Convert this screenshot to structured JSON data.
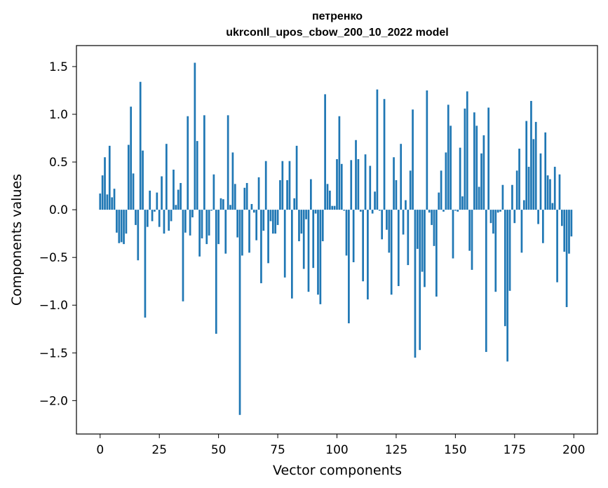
{
  "chart_data": {
    "type": "bar",
    "title_lines": [
      "петренко",
      "ukrconll_upos_cbow_200_10_2022 model"
    ],
    "xlabel": "Vector components",
    "ylabel": "Components values",
    "xlim": [
      -10,
      210
    ],
    "ylim": [
      -2.35,
      1.72
    ],
    "x_ticks": [
      0,
      25,
      50,
      75,
      100,
      125,
      150,
      175,
      200
    ],
    "y_ticks": [
      -2.0,
      -1.5,
      -1.0,
      -0.5,
      0.0,
      0.5,
      1.0,
      1.5
    ],
    "y_tick_labels": [
      "−2.0",
      "−1.5",
      "−1.0",
      "−0.5",
      "0.0",
      "0.5",
      "1.0",
      "1.5"
    ],
    "bar_color": "#1f77b4",
    "grid": false,
    "legend": "none",
    "values": [
      0.17,
      0.36,
      0.55,
      0.16,
      0.67,
      0.13,
      0.22,
      -0.24,
      -0.35,
      -0.34,
      -0.36,
      -0.25,
      0.68,
      1.08,
      0.38,
      -0.16,
      -0.53,
      1.34,
      0.62,
      -1.13,
      -0.18,
      0.2,
      -0.12,
      -0.02,
      0.18,
      -0.18,
      0.35,
      -0.25,
      0.69,
      -0.22,
      -0.12,
      0.42,
      0.05,
      0.21,
      0.28,
      -0.96,
      -0.24,
      0.98,
      -0.27,
      -0.08,
      1.54,
      0.72,
      -0.49,
      -0.3,
      0.99,
      -0.36,
      -0.27,
      -0.01,
      0.37,
      -1.3,
      -0.36,
      0.12,
      0.11,
      -0.46,
      0.99,
      0.05,
      0.6,
      0.27,
      -0.29,
      -2.15,
      -0.48,
      0.23,
      0.28,
      -0.45,
      0.06,
      -0.03,
      -0.32,
      0.34,
      -0.77,
      -0.22,
      0.51,
      -0.56,
      -0.12,
      -0.25,
      -0.25,
      -0.16,
      0.31,
      0.51,
      -0.71,
      0.31,
      0.51,
      -0.93,
      0.12,
      0.67,
      -0.33,
      -0.25,
      -0.62,
      -0.1,
      -0.86,
      0.32,
      -0.61,
      -0.04,
      -0.89,
      -0.99,
      -0.33,
      1.21,
      0.27,
      0.2,
      0.04,
      0.04,
      0.53,
      0.98,
      0.48,
      -0.01,
      -0.48,
      -1.19,
      0.52,
      -0.55,
      0.73,
      0.53,
      -0.02,
      -0.75,
      0.58,
      -0.94,
      0.46,
      -0.04,
      0.19,
      1.26,
      -0.01,
      -0.31,
      1.16,
      -0.21,
      -0.45,
      -0.89,
      0.55,
      0.31,
      -0.8,
      0.69,
      -0.26,
      0.1,
      -0.58,
      0.41,
      1.05,
      -1.55,
      -0.41,
      -1.47,
      -0.65,
      -0.81,
      1.25,
      -0.03,
      -0.16,
      -0.38,
      -0.91,
      0.18,
      0.41,
      -0.02,
      0.6,
      1.1,
      0.88,
      -0.51,
      -0.01,
      -0.02,
      0.65,
      0.14,
      1.06,
      1.24,
      -0.43,
      -0.63,
      1.02,
      0.88,
      0.24,
      0.59,
      0.78,
      -1.49,
      1.07,
      -0.14,
      -0.25,
      -0.86,
      -0.03,
      -0.02,
      0.26,
      -1.22,
      -1.59,
      -0.85,
      0.26,
      -0.14,
      0.41,
      0.64,
      -0.45,
      0.1,
      0.93,
      0.45,
      1.14,
      0.74,
      0.92,
      -0.15,
      0.59,
      -0.35,
      0.81,
      0.36,
      0.32,
      0.07,
      0.45,
      -0.76,
      0.37,
      -0.17,
      -0.44,
      -1.02,
      -0.46,
      -0.28
    ]
  }
}
